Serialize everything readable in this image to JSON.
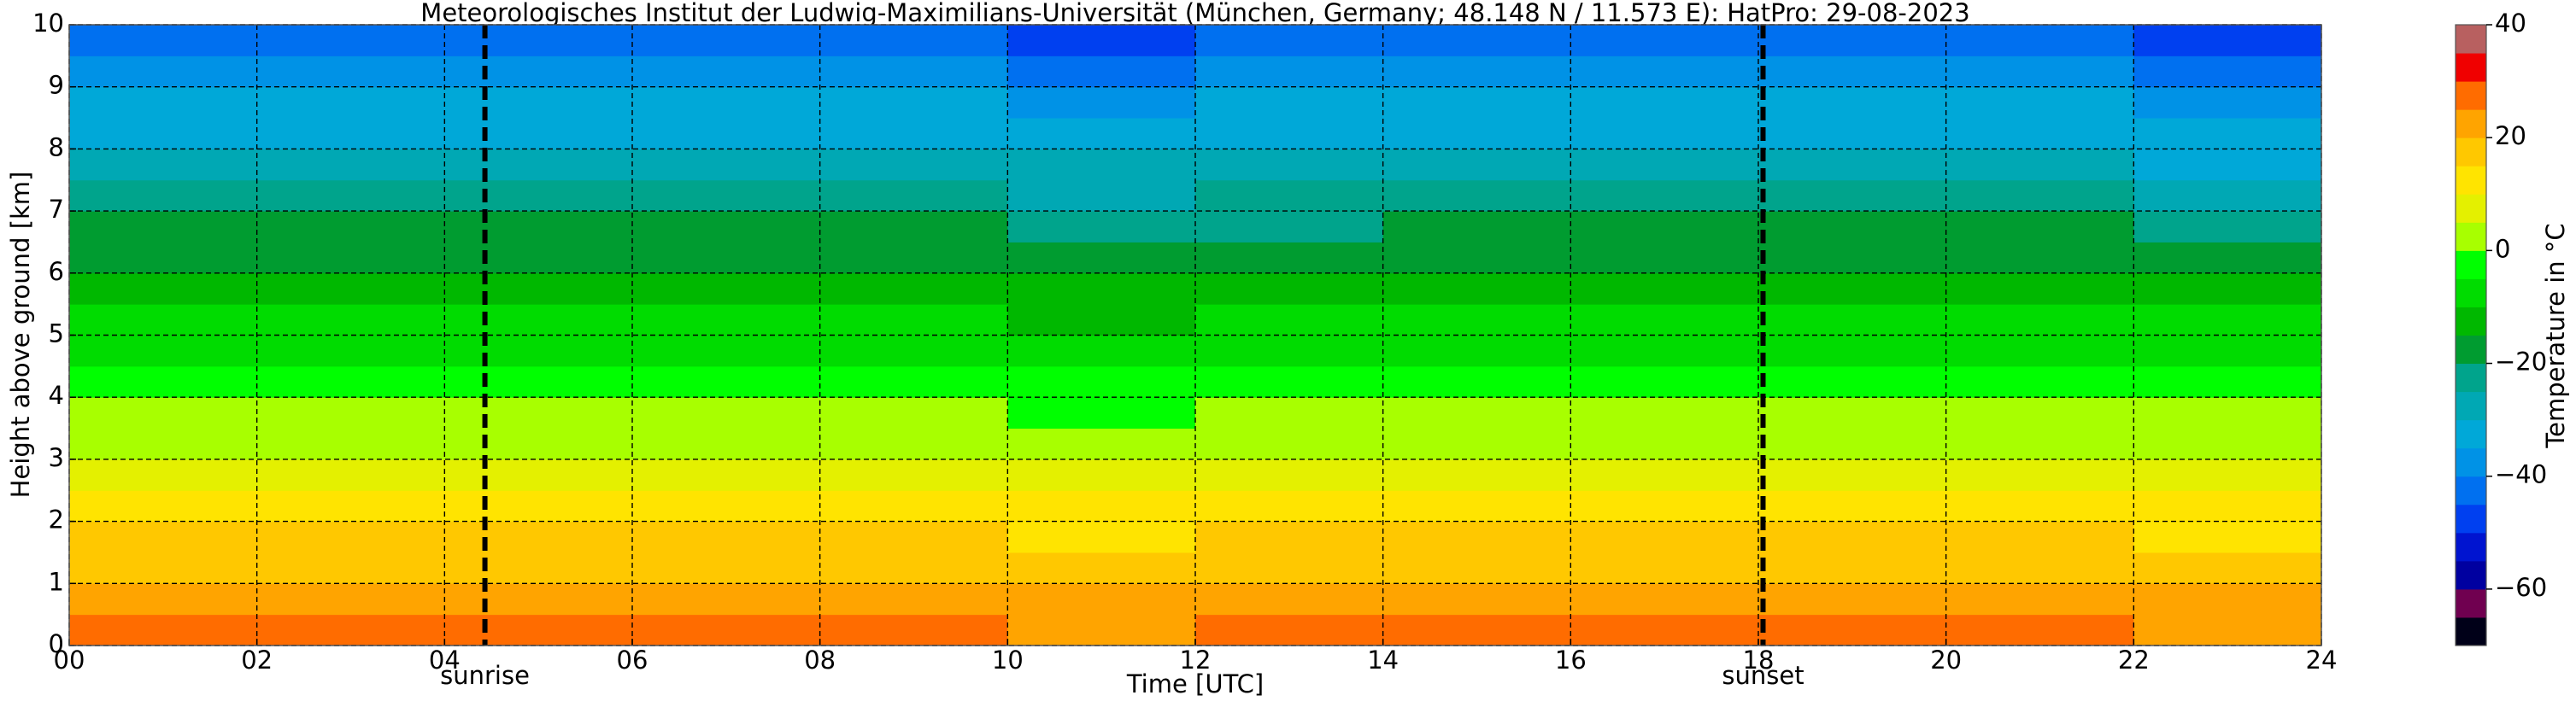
{
  "chart_data": {
    "type": "heatmap",
    "title": "Meteorologisches Institut der Ludwig-Maximilians-Universität (München, Germany; 48.148 N / 11.573 E):    HatPro: 29-08-2023",
    "x_label": "Time [UTC]",
    "y_label": "Height above ground [km]",
    "x": [
      0,
      2,
      4,
      6,
      8,
      10,
      12,
      14,
      16,
      18,
      20,
      22,
      24
    ],
    "y": [
      0,
      0.5,
      1,
      1.5,
      2,
      2.5,
      3,
      3.5,
      4,
      4.5,
      5,
      5.5,
      6,
      6.5,
      7,
      7.5,
      8,
      8.5,
      9,
      9.5,
      10
    ],
    "values": [
      [
        27,
        27,
        26,
        25,
        28,
        24,
        27,
        28,
        26,
        28,
        25,
        22
      ],
      [
        22,
        22,
        22,
        21,
        23,
        21,
        23,
        23,
        22,
        23,
        22,
        20
      ],
      [
        19,
        19,
        19,
        18,
        19,
        18,
        19,
        19,
        19,
        19,
        19,
        17
      ],
      [
        15,
        15,
        15,
        15,
        15,
        14,
        15,
        16,
        15,
        15,
        15,
        14
      ],
      [
        12,
        12,
        12,
        11,
        12,
        10,
        12,
        12,
        12,
        12,
        12,
        11
      ],
      [
        8,
        8,
        8,
        8,
        8,
        6,
        8,
        8,
        8,
        8,
        8,
        8
      ],
      [
        4,
        4,
        4,
        4,
        4,
        2,
        4,
        4,
        4,
        4,
        4,
        4
      ],
      [
        1,
        1,
        1,
        0,
        1,
        -1,
        1,
        1,
        1,
        1,
        1,
        1
      ],
      [
        -3,
        -3,
        -3,
        -3,
        -3,
        -4,
        -3,
        -3,
        -3,
        -3,
        -3,
        -3
      ],
      [
        -6,
        -6,
        -6,
        -6,
        -6,
        -8,
        -6,
        -6,
        -6,
        -6,
        -6,
        -6
      ],
      [
        -10,
        -10,
        -10,
        -10,
        -10,
        -11,
        -10,
        -10,
        -10,
        -10,
        -10,
        -10
      ],
      [
        -13,
        -13,
        -13,
        -13,
        -13,
        -15,
        -13,
        -13,
        -13,
        -13,
        -13,
        -14
      ],
      [
        -17,
        -17,
        -17,
        -17,
        -17,
        -19,
        -17,
        -17,
        -17,
        -17,
        -17,
        -19
      ],
      [
        -20,
        -20,
        -20,
        -20,
        -20,
        -24,
        -21,
        -20,
        -20,
        -20,
        -20,
        -23
      ],
      [
        -24,
        -24,
        -24,
        -24,
        -24,
        -27,
        -25,
        -24,
        -24,
        -24,
        -24,
        -27
      ],
      [
        -28,
        -28,
        -28,
        -28,
        -28,
        -30,
        -28,
        -28,
        -28,
        -28,
        -28,
        -31
      ],
      [
        -31,
        -31,
        -31,
        -31,
        -31,
        -33,
        -31,
        -31,
        -31,
        -31,
        -31,
        -34
      ],
      [
        -35,
        -35,
        -35,
        -35,
        -35,
        -37,
        -35,
        -35,
        -35,
        -35,
        -35,
        -38
      ],
      [
        -39,
        -39,
        -39,
        -39,
        -39,
        -41,
        -39,
        -39,
        -39,
        -39,
        -39,
        -43
      ],
      [
        -43,
        -43,
        -43,
        -43,
        -44,
        -47,
        -43,
        -43,
        -43,
        -43,
        -43,
        -49
      ]
    ],
    "xlim": [
      0,
      24
    ],
    "xticks": [
      {
        "value": 0,
        "label": "00"
      },
      {
        "value": 2,
        "label": "02"
      },
      {
        "value": 4,
        "label": "04"
      },
      {
        "value": 6,
        "label": "06"
      },
      {
        "value": 8,
        "label": "08"
      },
      10,
      12,
      14,
      16,
      18,
      20,
      22,
      24
    ],
    "ylim": [
      0,
      10
    ],
    "yticks": [
      0,
      1,
      2,
      3,
      4,
      5,
      6,
      7,
      8,
      9,
      10
    ],
    "grid": true,
    "annotations": [
      {
        "text": "sunrise",
        "x": 4.43
      },
      {
        "text": "sunset",
        "x": 18.05
      }
    ],
    "colorbar": {
      "label": "Temperature in °C",
      "lim": [
        -70,
        40
      ],
      "ticks": [
        {
          "value": -60,
          "label": "−60"
        },
        {
          "value": -40,
          "label": "−40"
        },
        {
          "value": -20,
          "label": "−20"
        },
        0,
        20,
        40
      ],
      "colors": [
        "#000018",
        "#700050",
        "#0000a0",
        "#0014d0",
        "#0040f0",
        "#0070f0",
        "#0092e6",
        "#00a8d8",
        "#00a8b4",
        "#00a48c",
        "#009c30",
        "#00b800",
        "#00dc00",
        "#00ff00",
        "#a8ff00",
        "#e4f000",
        "#ffe400",
        "#ffc800",
        "#ffa400",
        "#ff6c00",
        "#f00000",
        "#b86060"
      ]
    }
  }
}
